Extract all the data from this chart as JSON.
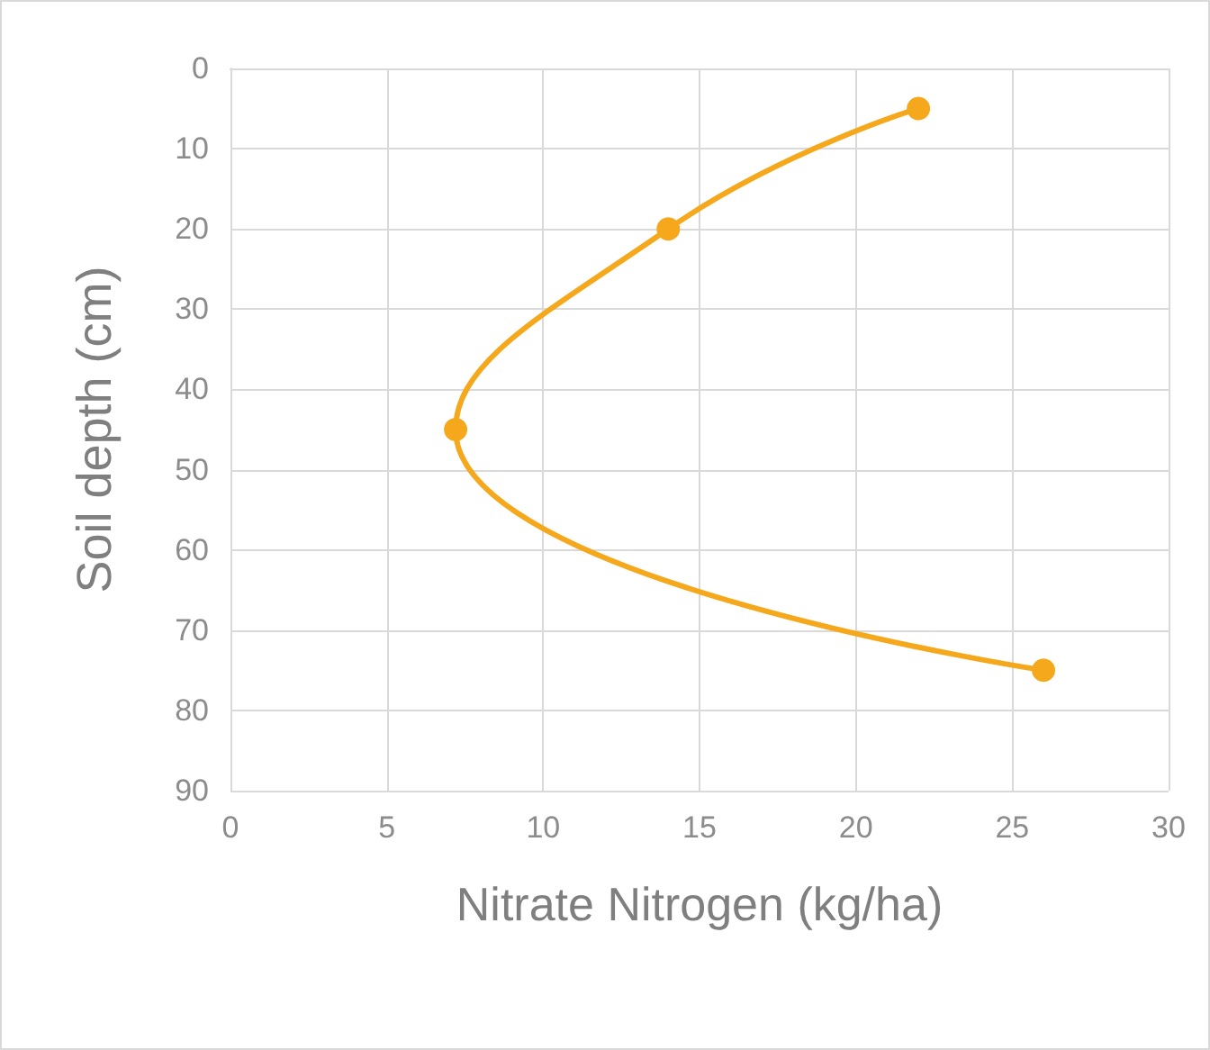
{
  "chart_data": {
    "type": "line",
    "xlabel": "Nitrate Nitrogen (kg/ha)",
    "ylabel": "Soil depth (cm)",
    "x": [
      22,
      14,
      7.2,
      26
    ],
    "series": [
      {
        "color": "#f5a81c",
        "values": [
          5,
          20,
          45,
          75
        ]
      }
    ],
    "xlim": [
      0,
      30
    ],
    "xticks": [
      0,
      5,
      10,
      15,
      20,
      25,
      30
    ],
    "ylim": [
      90,
      0
    ],
    "yticks": [
      0,
      10,
      20,
      30,
      40,
      50,
      60,
      70,
      80,
      90
    ],
    "grid": true,
    "marker": "circle",
    "line_style": "solid"
  }
}
